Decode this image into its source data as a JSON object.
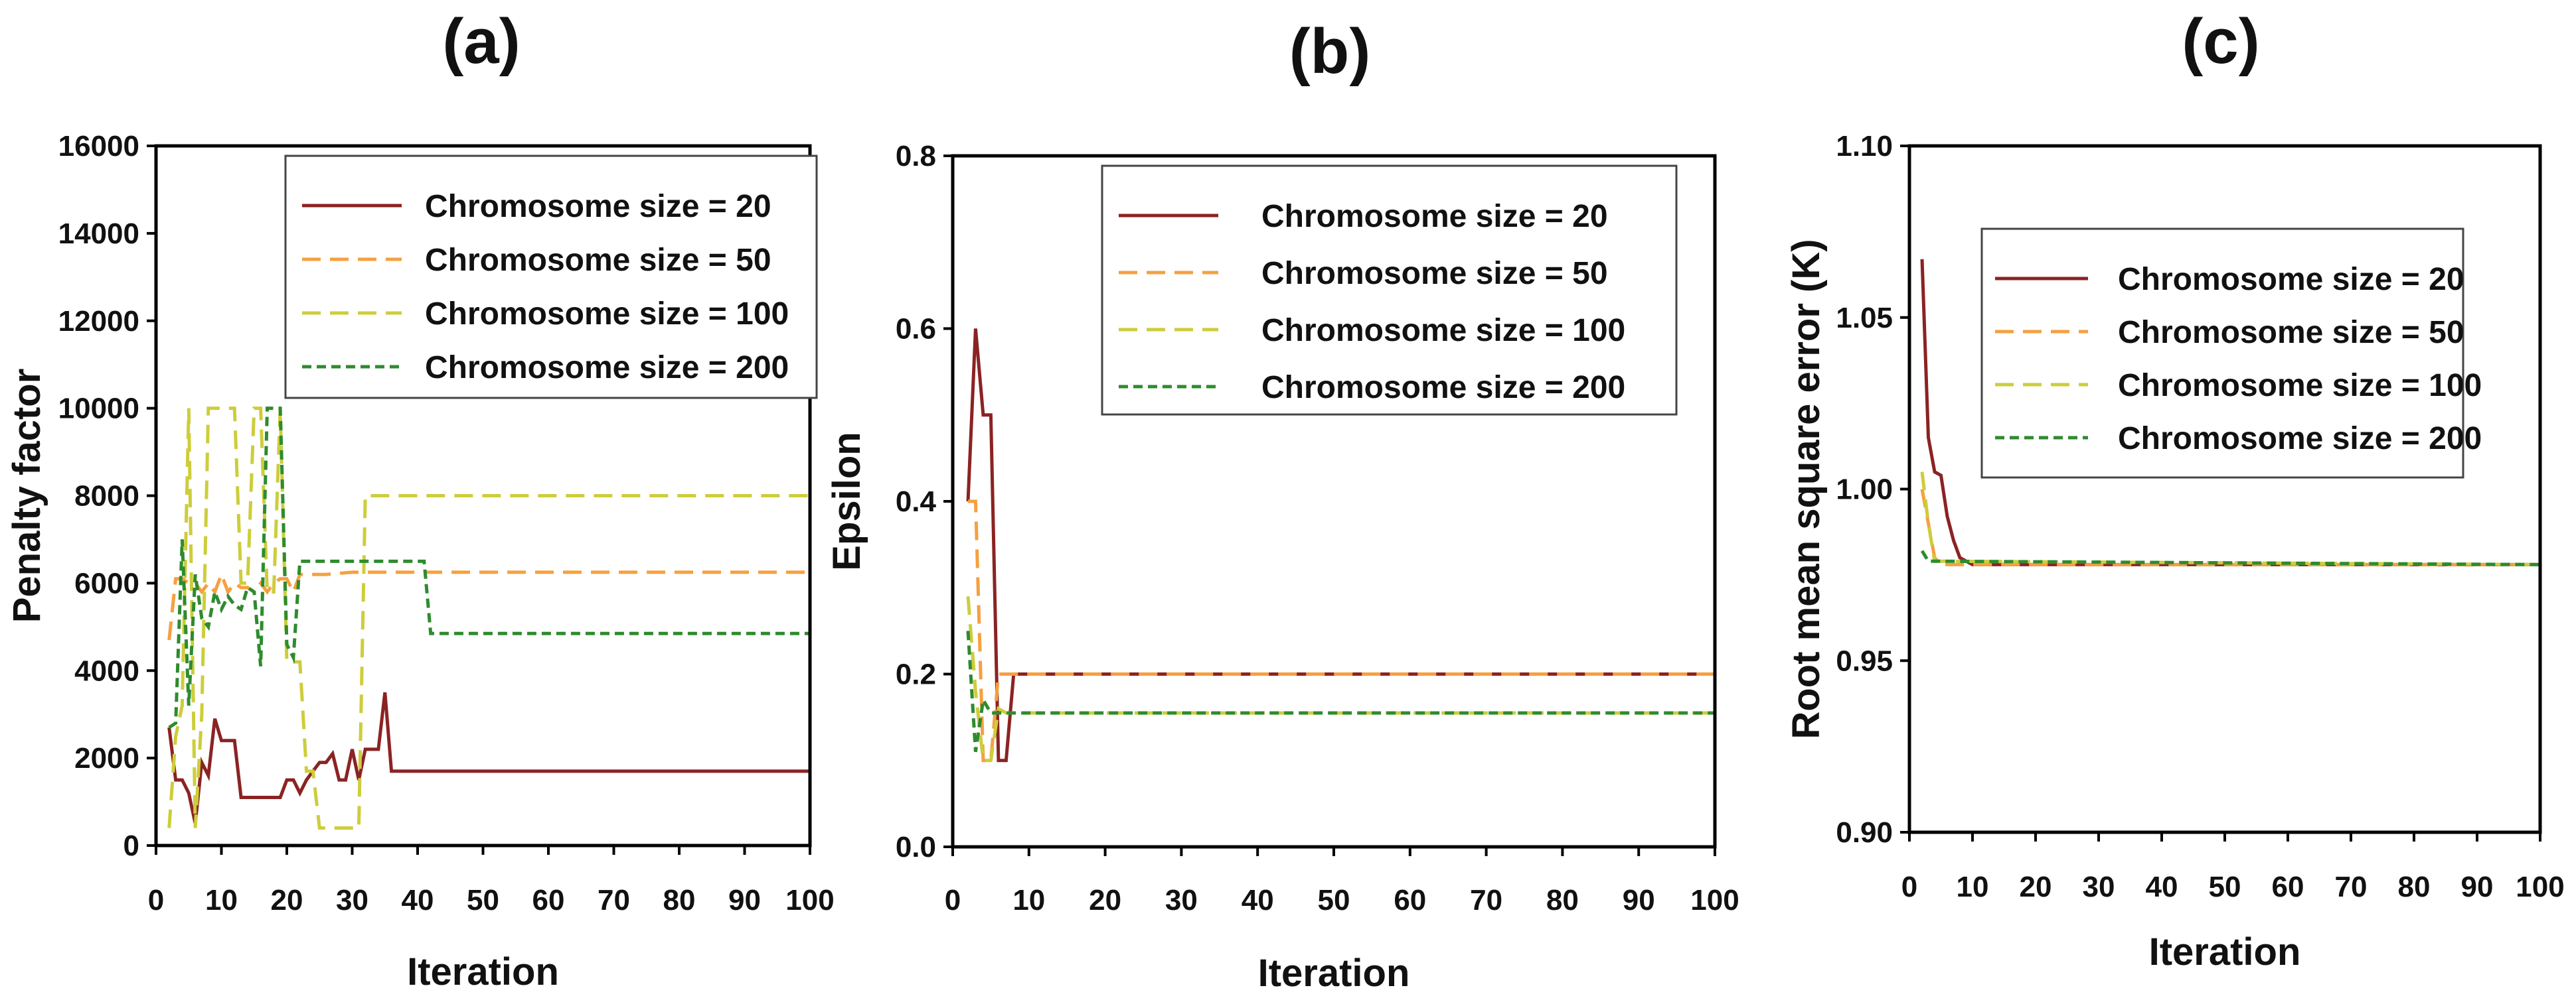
{
  "chart_data": [
    {
      "type": "line",
      "panel_label": "(a)",
      "xlabel": "Iteration",
      "ylabel": "Penalty factor",
      "xlim": [
        0,
        100
      ],
      "ylim": [
        0,
        16000
      ],
      "xticks": [
        0,
        10,
        20,
        30,
        40,
        50,
        60,
        70,
        80,
        90,
        100
      ],
      "xtick_labels": [
        "0",
        "10",
        "20",
        "30",
        "40",
        "50",
        "60",
        "70",
        "80",
        "90",
        "100"
      ],
      "yticks": [
        0,
        2000,
        4000,
        6000,
        8000,
        10000,
        12000,
        14000,
        16000
      ],
      "ytick_labels": [
        "0",
        "2000",
        "4000",
        "6000",
        "8000",
        "10000",
        "12000",
        "14000",
        "16000"
      ],
      "legend_position": "top-right",
      "series": [
        {
          "name": "Chromosome size = 20",
          "color": "#8B2323",
          "dash": "solid",
          "x": [
            2,
            3,
            4,
            5,
            6,
            7,
            8,
            9,
            10,
            11,
            12,
            13,
            14,
            15,
            16,
            17,
            18,
            19,
            20,
            21,
            22,
            23,
            24,
            25,
            26,
            27,
            28,
            29,
            30,
            31,
            32,
            33,
            34,
            35,
            36,
            100
          ],
          "y": [
            2700,
            1500,
            1500,
            1200,
            500,
            1900,
            1600,
            2900,
            2400,
            2400,
            2400,
            1100,
            1100,
            1100,
            1100,
            1100,
            1100,
            1100,
            1500,
            1500,
            1200,
            1500,
            1700,
            1900,
            1900,
            2100,
            1500,
            1500,
            2200,
            1500,
            2200,
            2200,
            2200,
            3500,
            1700,
            1700
          ]
        },
        {
          "name": "Chromosome size = 50",
          "color": "#F5A040",
          "dash": "long",
          "x": [
            2,
            3,
            4,
            5,
            6,
            7,
            8,
            9,
            10,
            11,
            12,
            13,
            14,
            15,
            16,
            17,
            18,
            19,
            20,
            21,
            22,
            23,
            24,
            25,
            26,
            30,
            100
          ],
          "y": [
            4700,
            6100,
            6100,
            6000,
            6000,
            5800,
            6000,
            5800,
            6200,
            5800,
            6000,
            5900,
            5900,
            5800,
            6000,
            5800,
            6000,
            6100,
            6100,
            5800,
            6200,
            6200,
            6200,
            6200,
            6200,
            6250,
            6250
          ]
        },
        {
          "name": "Chromosome size = 100",
          "color": "#CDCD3C",
          "dash": "long",
          "x": [
            2,
            3,
            4,
            5,
            6,
            7,
            8,
            12,
            13,
            14,
            15,
            16,
            17,
            18,
            19,
            20,
            21,
            22,
            23,
            24,
            25,
            26,
            31,
            32,
            100
          ],
          "y": [
            400,
            2500,
            3200,
            10000,
            400,
            3000,
            10000,
            10000,
            6000,
            6000,
            10000,
            10000,
            5800,
            5800,
            10000,
            4200,
            4200,
            4200,
            1700,
            1700,
            400,
            400,
            400,
            8000,
            8000
          ]
        },
        {
          "name": "Chromosome size = 200",
          "color": "#2E8B2E",
          "dash": "short",
          "x": [
            2,
            3,
            4,
            5,
            6,
            7,
            8,
            9,
            10,
            11,
            12,
            13,
            14,
            15,
            16,
            17,
            18,
            19,
            20,
            21,
            22,
            23,
            41,
            42,
            100
          ],
          "y": [
            2700,
            2800,
            7000,
            3200,
            6200,
            5200,
            5000,
            5800,
            5400,
            5700,
            5500,
            5400,
            5900,
            5800,
            4100,
            10000,
            10000,
            10000,
            4600,
            4300,
            6500,
            6500,
            6500,
            4850,
            4850
          ]
        }
      ]
    },
    {
      "type": "line",
      "panel_label": "(b)",
      "xlabel": "Iteration",
      "ylabel": "Epsilon",
      "xlim": [
        0,
        100
      ],
      "ylim": [
        0,
        0.8
      ],
      "xticks": [
        0,
        10,
        20,
        30,
        40,
        50,
        60,
        70,
        80,
        90,
        100
      ],
      "xtick_labels": [
        "0",
        "10",
        "20",
        "30",
        "40",
        "50",
        "60",
        "70",
        "80",
        "90",
        "100"
      ],
      "yticks": [
        0,
        0.2,
        0.4,
        0.6,
        0.8
      ],
      "ytick_labels": [
        "0.0",
        "0.2",
        "0.4",
        "0.6",
        "0.8"
      ],
      "legend_position": "top-right",
      "series": [
        {
          "name": "Chromosome size = 20",
          "color": "#8B2323",
          "dash": "solid",
          "x": [
            2,
            3,
            4,
            5,
            6,
            7,
            8,
            100
          ],
          "y": [
            0.4,
            0.6,
            0.5,
            0.5,
            0.1,
            0.1,
            0.2,
            0.2
          ]
        },
        {
          "name": "Chromosome size = 50",
          "color": "#F5A040",
          "dash": "long",
          "x": [
            2,
            3,
            4,
            5,
            6,
            100
          ],
          "y": [
            0.4,
            0.4,
            0.1,
            0.1,
            0.2,
            0.2
          ]
        },
        {
          "name": "Chromosome size = 100",
          "color": "#CDCD3C",
          "dash": "long",
          "x": [
            2,
            3,
            4,
            5,
            6,
            7,
            100
          ],
          "y": [
            0.29,
            0.18,
            0.1,
            0.1,
            0.16,
            0.155,
            0.155
          ]
        },
        {
          "name": "Chromosome size = 200",
          "color": "#2E8B2E",
          "dash": "short",
          "x": [
            2,
            3,
            4,
            5,
            100
          ],
          "y": [
            0.25,
            0.11,
            0.17,
            0.155,
            0.155
          ]
        }
      ]
    },
    {
      "type": "line",
      "panel_label": "(c)",
      "xlabel": "Iteration",
      "ylabel": "Root mean square error (K)",
      "xlim": [
        0,
        100
      ],
      "ylim": [
        0.9,
        1.1
      ],
      "xticks": [
        0,
        10,
        20,
        30,
        40,
        50,
        60,
        70,
        80,
        90,
        100
      ],
      "xtick_labels": [
        "0",
        "10",
        "20",
        "30",
        "40",
        "50",
        "60",
        "70",
        "80",
        "90",
        "100"
      ],
      "yticks": [
        0.9,
        0.95,
        1.0,
        1.05,
        1.1
      ],
      "ytick_labels": [
        "0.90",
        "0.95",
        "1.00",
        "1.05",
        "1.10"
      ],
      "legend_position": "top-right",
      "series": [
        {
          "name": "Chromosome size = 20",
          "color": "#8B2323",
          "dash": "solid",
          "x": [
            2,
            3,
            4,
            5,
            6,
            7,
            8,
            9,
            10,
            100
          ],
          "y": [
            1.067,
            1.015,
            1.005,
            1.004,
            0.992,
            0.985,
            0.98,
            0.979,
            0.978,
            0.978
          ]
        },
        {
          "name": "Chromosome size = 50",
          "color": "#F5A040",
          "dash": "long",
          "x": [
            2,
            3,
            4,
            5,
            100
          ],
          "y": [
            1.0,
            0.99,
            0.98,
            0.978,
            0.978
          ]
        },
        {
          "name": "Chromosome size = 100",
          "color": "#CDCD3C",
          "dash": "long",
          "x": [
            2,
            3,
            4,
            100
          ],
          "y": [
            1.005,
            0.99,
            0.979,
            0.978
          ]
        },
        {
          "name": "Chromosome size = 200",
          "color": "#2E8B2E",
          "dash": "short",
          "x": [
            2,
            3,
            100
          ],
          "y": [
            0.982,
            0.979,
            0.978
          ]
        }
      ]
    }
  ]
}
